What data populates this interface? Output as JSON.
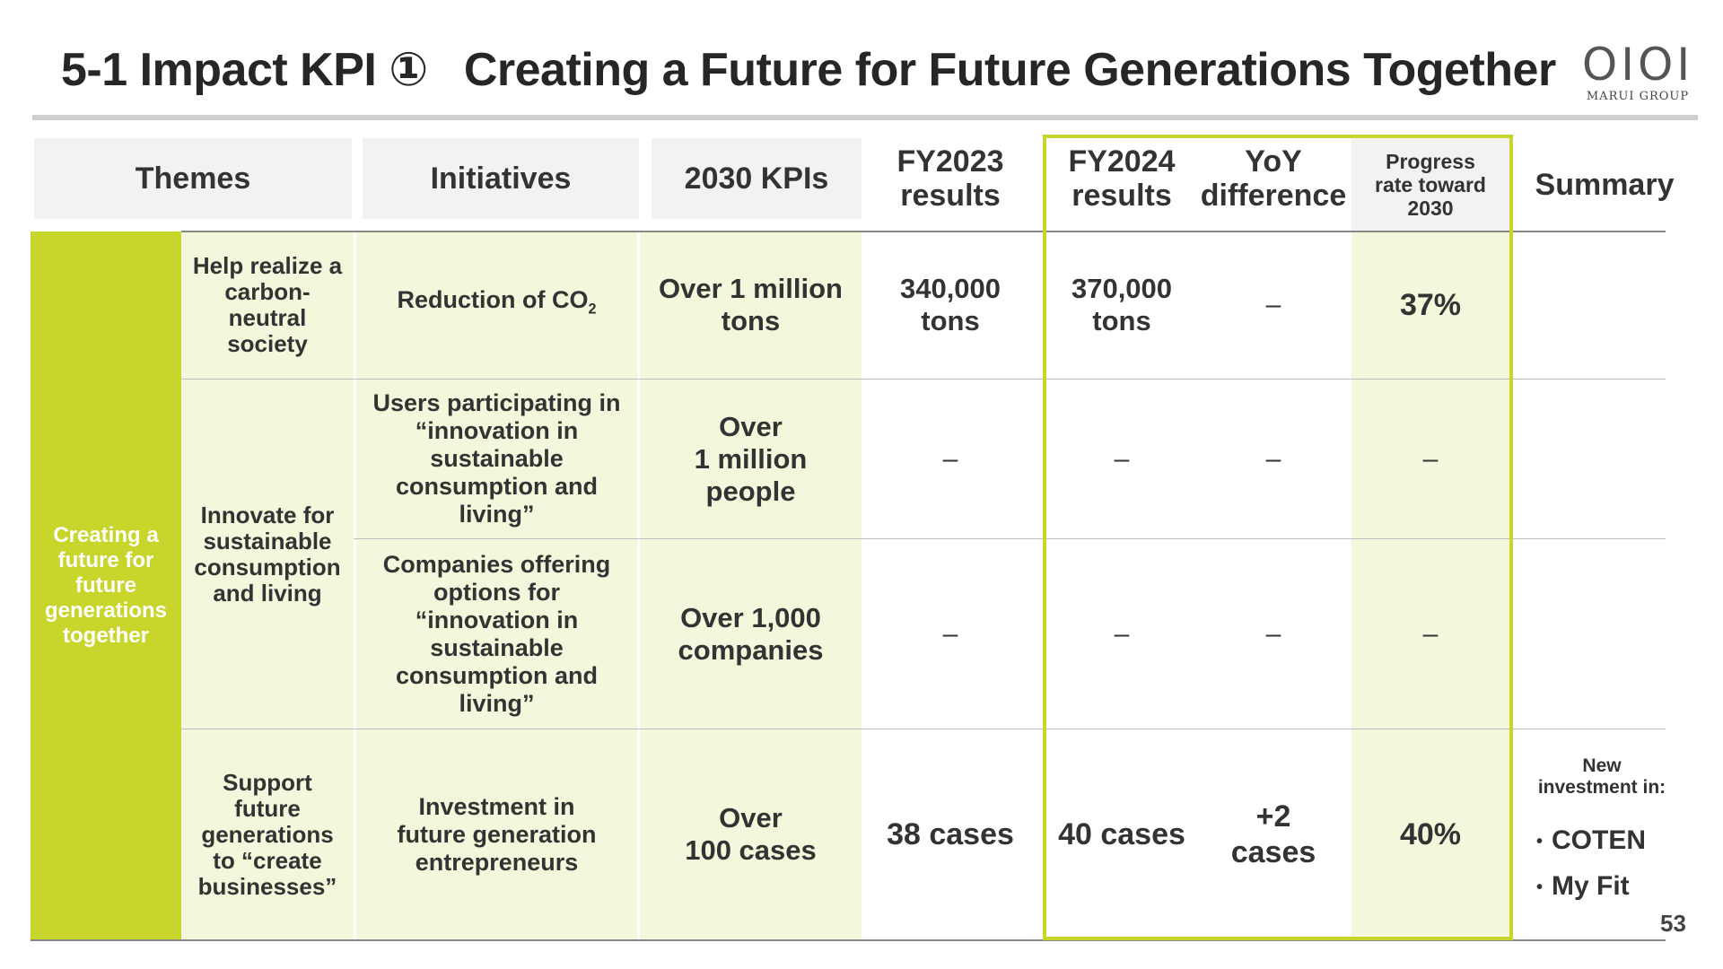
{
  "title": {
    "part1": "5-1 Impact KPI ①",
    "part2": "Creating a Future for Future Generations Together"
  },
  "logo": {
    "mark": "OIOI",
    "name": "MARUI GROUP"
  },
  "headers": {
    "themes": "Themes",
    "initiatives": "Initiatives",
    "kpis": "2030 KPIs",
    "fy2023_l1": "FY2023",
    "fy2023_l2": "results",
    "fy2024_l1": "FY2024",
    "fy2024_l2": "results",
    "yoy_l1": "YoY",
    "yoy_l2": "difference",
    "progress_l1": "Progress",
    "progress_l2": "rate toward",
    "progress_l3": "2030",
    "summary": "Summary"
  },
  "theme_main": [
    "Creating a",
    "future for",
    "future",
    "generations",
    "together"
  ],
  "rows": [
    {
      "theme": [
        "Help realize a",
        "carbon-",
        "neutral",
        "society"
      ],
      "initiative_main": "Reduction of CO",
      "initiative_sub": "2",
      "kpi": [
        "Over 1 million",
        "tons"
      ],
      "fy2023": [
        "340,000",
        "tons"
      ],
      "fy2024": [
        "370,000",
        "tons"
      ],
      "yoy": "–",
      "progress": "37%"
    },
    {
      "initiative": [
        "Users participating in",
        "“innovation in",
        "sustainable",
        "consumption and",
        "living”"
      ],
      "kpi": [
        "Over",
        "1 million",
        "people"
      ],
      "fy2023": "–",
      "fy2024": "–",
      "yoy": "–",
      "progress": "–"
    },
    {
      "initiative": [
        "Companies offering",
        "options for",
        "“innovation in",
        "sustainable",
        "consumption and",
        "living”"
      ],
      "kpi": [
        "Over 1,000",
        "companies"
      ],
      "fy2023": "–",
      "fy2024": "–",
      "yoy": "–",
      "progress": "–"
    },
    {
      "theme": [
        "Support",
        "future",
        "generations",
        "to “create",
        "businesses”"
      ],
      "initiative": [
        "Investment in",
        "future generation",
        "entrepreneurs"
      ],
      "kpi": [
        "Over",
        "100 cases"
      ],
      "fy2023": "38 cases",
      "fy2024": "40 cases",
      "yoy": [
        "+2",
        "cases"
      ],
      "progress": "40%"
    }
  ],
  "theme_shared": [
    "Innovate for",
    "sustainable",
    "consumption",
    "and living"
  ],
  "summary": {
    "lead": [
      "New",
      "investment in:"
    ],
    "items": [
      "COTEN",
      "My Fit"
    ]
  },
  "page_number": "53",
  "colors": {
    "accent_green": "#c8d62b",
    "light_green": "#f3f7dc",
    "header_gray": "#f2f2f2"
  }
}
